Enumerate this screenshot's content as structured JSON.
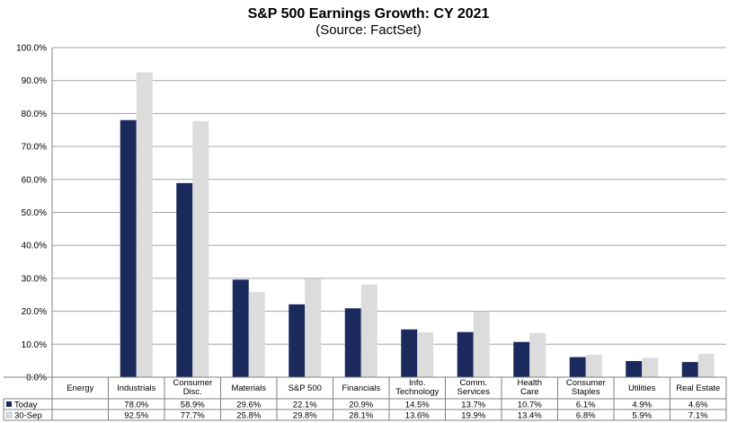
{
  "chart_data": {
    "type": "bar",
    "title": "S&P 500 Earnings Growth: CY 2021",
    "subtitle": "(Source: FactSet)",
    "ylim": [
      0,
      100
    ],
    "yticks": [
      "0.0%",
      "10.0%",
      "20.0%",
      "30.0%",
      "40.0%",
      "50.0%",
      "60.0%",
      "70.0%",
      "80.0%",
      "90.0%",
      "100.0%"
    ],
    "grid": true,
    "legend": "data-table",
    "categories": [
      [
        "Energy"
      ],
      [
        "Industrials"
      ],
      [
        "Consumer",
        "Disc."
      ],
      [
        "Materials"
      ],
      [
        "S&P 500"
      ],
      [
        "Financials"
      ],
      [
        "Info.",
        "Technology"
      ],
      [
        "Comm.",
        "Services"
      ],
      [
        "Health",
        "Care"
      ],
      [
        "Consumer",
        "Staples"
      ],
      [
        "Utilities"
      ],
      [
        "Real Estate"
      ]
    ],
    "series": [
      {
        "name": "Today",
        "color": "#1b2a5c",
        "values": [
          null,
          78.0,
          58.9,
          29.6,
          22.1,
          20.9,
          14.5,
          13.7,
          10.7,
          6.1,
          4.9,
          4.6
        ],
        "labels": [
          "",
          "78.0%",
          "58.9%",
          "29.6%",
          "22.1%",
          "20.9%",
          "14.5%",
          "13.7%",
          "10.7%",
          "6.1%",
          "4.9%",
          "4.6%"
        ]
      },
      {
        "name": "30-Sep",
        "color": "#dcdcdc",
        "values": [
          null,
          92.5,
          77.7,
          25.8,
          29.8,
          28.1,
          13.6,
          19.9,
          13.4,
          6.8,
          5.9,
          7.1
        ],
        "labels": [
          "",
          "92.5%",
          "77.7%",
          "25.8%",
          "29.8%",
          "28.1%",
          "13.6%",
          "19.9%",
          "13.4%",
          "6.8%",
          "5.9%",
          "7.1%"
        ]
      }
    ]
  }
}
